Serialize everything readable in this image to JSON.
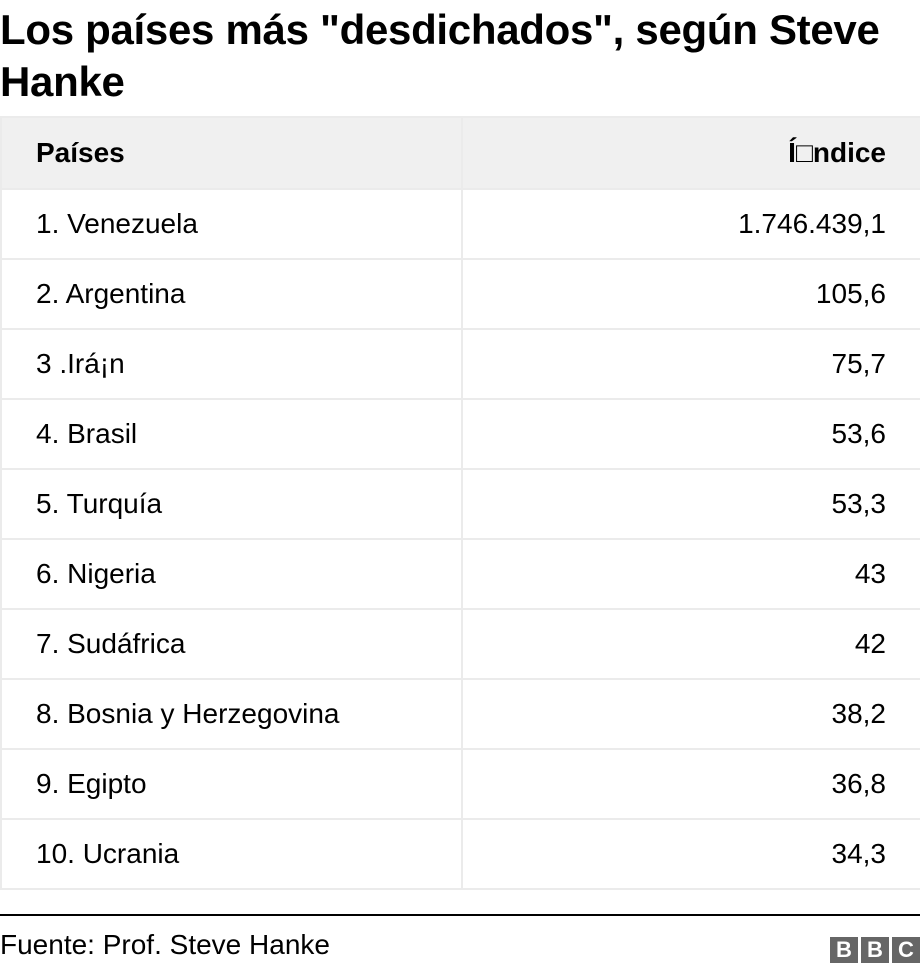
{
  "title": "Los países más \"desdichados\", según Steve Hanke",
  "table": {
    "headers": [
      "Países",
      "Í□ndice"
    ],
    "rows": [
      {
        "country": "1. Venezuela",
        "value": "1.746.439,1"
      },
      {
        "country": "2. Argentina",
        "value": "105,6"
      },
      {
        "country": "3 .Irá¡n",
        "value": "75,7"
      },
      {
        "country": "4. Brasil",
        "value": "53,6"
      },
      {
        "country": "5. Turquía",
        "value": "53,3"
      },
      {
        "country": "6. Nigeria",
        "value": "43"
      },
      {
        "country": "7. Sudáfrica",
        "value": "42"
      },
      {
        "country": "8. Bosnia y Herzegovina",
        "value": "38,2"
      },
      {
        "country": "9. Egipto",
        "value": "36,8"
      },
      {
        "country": "10. Ucrania",
        "value": "34,3"
      }
    ]
  },
  "footer": {
    "source": "Fuente: Prof. Steve Hanke",
    "logo_letters": [
      "B",
      "B",
      "C"
    ]
  },
  "colors": {
    "header_bg": "#f0f0f0",
    "border": "#ebebeb",
    "logo_bg": "#666666"
  },
  "chart_data": {
    "type": "table",
    "title": "Los países más \"desdichados\", según Steve Hanke",
    "columns": [
      "Países",
      "Índice"
    ],
    "categories": [
      "Venezuela",
      "Argentina",
      "Irán",
      "Brasil",
      "Turquía",
      "Nigeria",
      "Sudáfrica",
      "Bosnia y Herzegovina",
      "Egipto",
      "Ucrania"
    ],
    "values": [
      1746439.1,
      105.6,
      75.7,
      53.6,
      53.3,
      43,
      42,
      38.2,
      36.8,
      34.3
    ],
    "source": "Fuente: Prof. Steve Hanke"
  }
}
